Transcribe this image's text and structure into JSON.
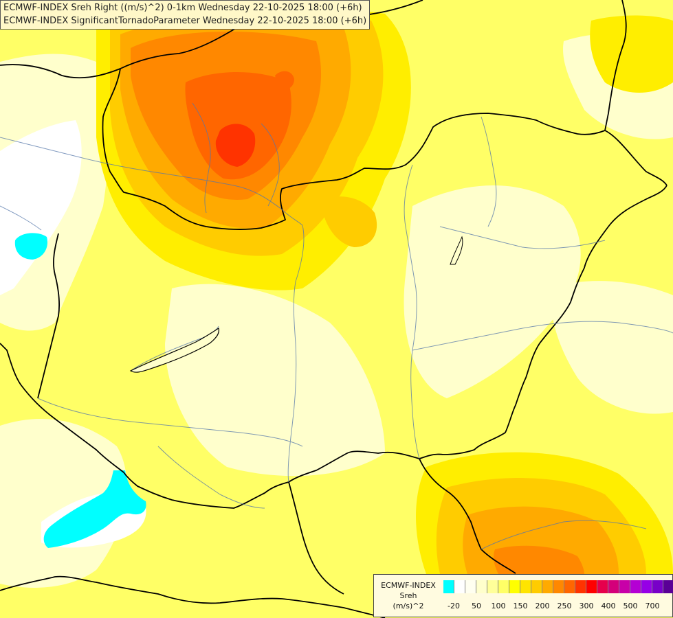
{
  "header": {
    "line1": "ECMWF-INDEX Sreh Right ((m/s)^2) 0-1km Wednesday 22-10-2025 18:00 (+6h)",
    "line2": "ECMWF-INDEX SignificantTornadoParameter Wednesday 22-10-2025 18:00 (+6h)"
  },
  "legend": {
    "line1": "ECMWF-INDEX",
    "line2": "Sreh",
    "line3": "(m/s)^2",
    "colors": [
      "#00ffff",
      "#ffffff",
      "#fffff0",
      "#ffffcc",
      "#ffff99",
      "#ffff66",
      "#ffff00",
      "#ffe400",
      "#ffcc00",
      "#ffaa00",
      "#ff8800",
      "#ff6600",
      "#ff3300",
      "#ff0000",
      "#e6004c",
      "#d4007a",
      "#c800a8",
      "#b400d4",
      "#9600e6",
      "#7800c8",
      "#5a0096",
      "#2a0080"
    ],
    "ticks": [
      "-20",
      "50",
      "100",
      "150",
      "200",
      "250",
      "300",
      "400",
      "500",
      "700"
    ]
  },
  "map": {
    "colors": {
      "water": "#00ffff",
      "white": "#ffffff",
      "pale": "#ffffcc",
      "light": "#ffff99",
      "yellow": "#ffff66",
      "gold": "#ffee00",
      "amber": "#ffcc00",
      "orange": "#ffaa00",
      "dark_orange": "#ff8800",
      "red_orange": "#ff6600",
      "red": "#ff3300"
    }
  }
}
